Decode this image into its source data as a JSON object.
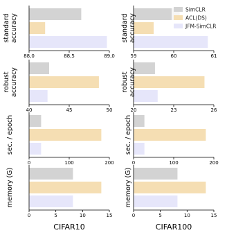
{
  "series": [
    {
      "name": "SimCLR",
      "color": "#d3d3d3"
    },
    {
      "name": "ACL(DS)",
      "color": "#f5deb3"
    },
    {
      "name": "JFM-SimCLR",
      "color": "#e6e6fa"
    }
  ],
  "legend_position": "top-right",
  "columns": [
    "CIFAR10",
    "CIFAR100"
  ],
  "rows": [
    "standard\naccuracy",
    "robust\naccuracy",
    "sec. / epoch",
    "memory (G)"
  ],
  "chart_data": [
    {
      "type": "bar",
      "orientation": "horizontal",
      "column": 0,
      "row": 0,
      "xlim": [
        88.0,
        89.0
      ],
      "ticks": [
        88.0,
        88.5,
        89.0
      ],
      "tick_labels": [
        "88,0",
        "88,5",
        "89,0"
      ],
      "values": [
        88.65,
        88.2,
        88.97
      ]
    },
    {
      "type": "bar",
      "orientation": "horizontal",
      "column": 1,
      "row": 0,
      "xlim": [
        59,
        61
      ],
      "ticks": [
        59,
        60,
        61
      ],
      "tick_labels": [
        "59",
        "60",
        "61"
      ],
      "values": [
        60.15,
        59.5,
        60.85
      ]
    },
    {
      "type": "bar",
      "orientation": "horizontal",
      "column": 0,
      "row": 1,
      "xlim": [
        40,
        50
      ],
      "ticks": [
        40,
        45,
        50
      ],
      "tick_labels": [
        "40",
        "45",
        "50"
      ],
      "values": [
        42.5,
        48.7,
        42.3
      ]
    },
    {
      "type": "bar",
      "orientation": "horizontal",
      "column": 1,
      "row": 1,
      "xlim": [
        20,
        26
      ],
      "ticks": [
        20,
        23,
        26
      ],
      "tick_labels": [
        "20",
        "23",
        "26"
      ],
      "values": [
        21.6,
        25.3,
        21.8
      ]
    },
    {
      "type": "bar",
      "orientation": "horizontal",
      "column": 0,
      "row": 2,
      "xlim": [
        0,
        200
      ],
      "ticks": [
        0,
        100,
        200
      ],
      "tick_labels": [
        "0",
        "100",
        "200"
      ],
      "values": [
        30,
        180,
        30
      ]
    },
    {
      "type": "bar",
      "orientation": "horizontal",
      "column": 1,
      "row": 2,
      "xlim": [
        0,
        200
      ],
      "ticks": [
        0,
        100,
        200
      ],
      "tick_labels": [
        "0",
        "100",
        "200"
      ],
      "values": [
        27,
        180,
        27
      ]
    },
    {
      "type": "bar",
      "orientation": "horizontal",
      "column": 0,
      "row": 3,
      "xlim": [
        0,
        15
      ],
      "ticks": [
        0,
        5,
        10,
        15
      ],
      "tick_labels": [
        "0",
        "5",
        "10",
        "15"
      ],
      "values": [
        8.2,
        13.5,
        8.2
      ]
    },
    {
      "type": "bar",
      "orientation": "horizontal",
      "column": 1,
      "row": 3,
      "xlim": [
        0,
        15
      ],
      "ticks": [
        0,
        5,
        10,
        15
      ],
      "tick_labels": [
        "0",
        "5",
        "10",
        "15"
      ],
      "values": [
        8.2,
        13.5,
        8.2
      ]
    }
  ]
}
